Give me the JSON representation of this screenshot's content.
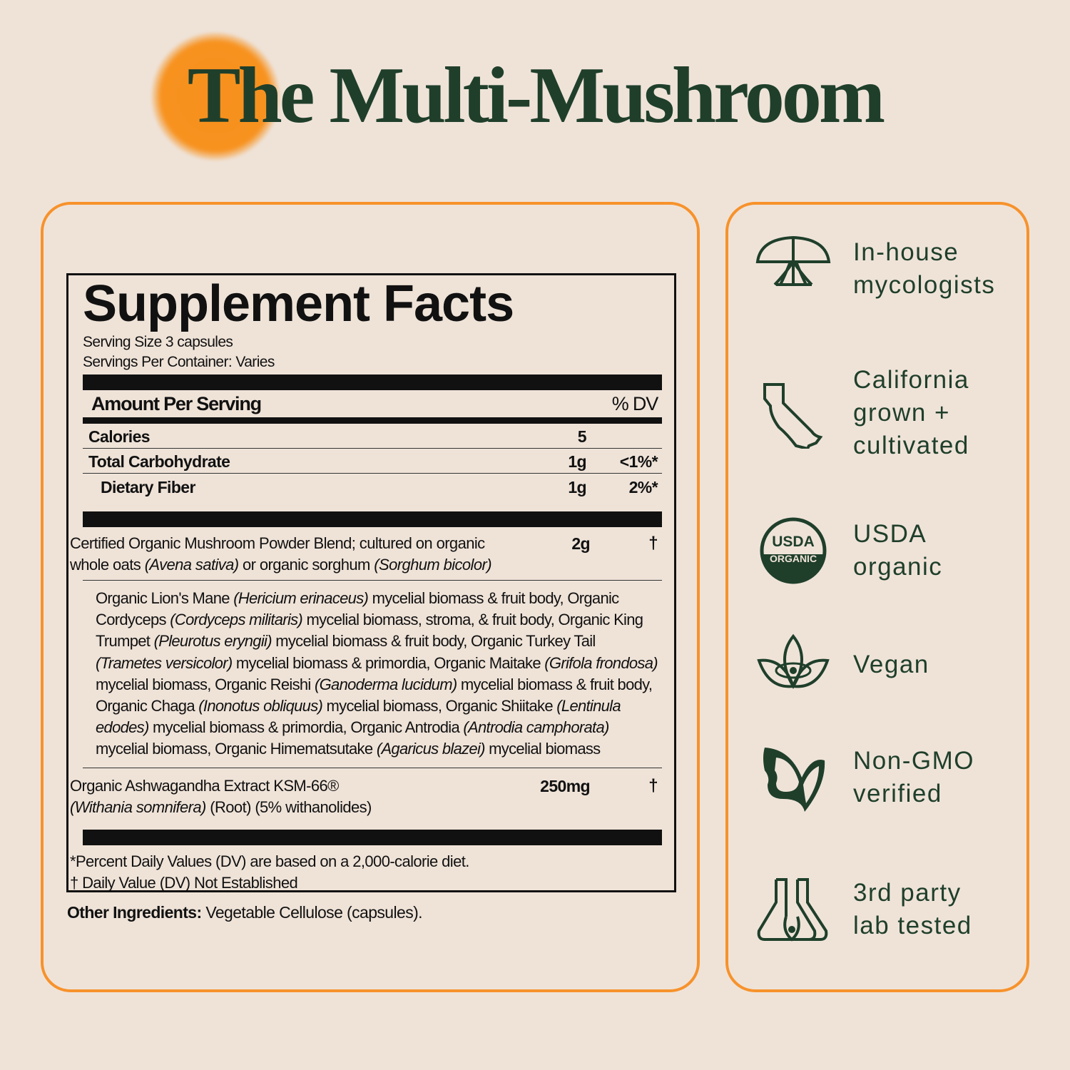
{
  "title": "The Multi-Mushroom",
  "colors": {
    "accent": "#f7922b",
    "brand_green": "#1f3f2b",
    "background": "#efe3d8"
  },
  "facts": {
    "heading": "Supplement Facts",
    "serving_size": "Serving Size 3 capsules",
    "servings_per_container": "Servings Per Container: Varies",
    "amount_header": "Amount Per Serving",
    "dv_header": "% DV",
    "rows": [
      {
        "name": "Calories",
        "amount": "5",
        "dv": ""
      },
      {
        "name": "Total Carbohydrate",
        "amount": "1g",
        "dv": "<1%*"
      },
      {
        "name": "Dietary Fiber",
        "amount": "1g",
        "dv": "2%*"
      }
    ],
    "blend": {
      "segments": [
        {
          "text": "Certified Organic Mushroom Powder Blend; cultured on organic whole oats ",
          "italic": false
        },
        {
          "text": "(Avena sativa)",
          "italic": true
        },
        {
          "text": " or organic sorghum ",
          "italic": false
        },
        {
          "text": "(Sorghum bicolor)",
          "italic": true
        }
      ],
      "amount": "2g",
      "dv": "†"
    },
    "blend_detail": [
      {
        "text": "Organic Lion's Mane ",
        "italic": false
      },
      {
        "text": "(Hericium erinaceus)",
        "italic": true
      },
      {
        "text": " mycelial biomass & fruit body, Organic Cordyceps ",
        "italic": false
      },
      {
        "text": "(Cordyceps militaris)",
        "italic": true
      },
      {
        "text": " mycelial biomass, stroma, & fruit body, Organic King Trumpet ",
        "italic": false
      },
      {
        "text": "(Pleurotus eryngii)",
        "italic": true
      },
      {
        "text": " mycelial biomass & fruit body, Organic Turkey Tail ",
        "italic": false
      },
      {
        "text": "(Trametes versicolor)",
        "italic": true
      },
      {
        "text": " mycelial biomass & primordia, Organic Maitake ",
        "italic": false
      },
      {
        "text": "(Grifola frondosa)",
        "italic": true
      },
      {
        "text": " mycelial biomass, Organic Reishi ",
        "italic": false
      },
      {
        "text": "(Ganoderma lucidum)",
        "italic": true
      },
      {
        "text": " mycelial biomass & fruit body, Organic Chaga ",
        "italic": false
      },
      {
        "text": "(Inonotus obliquus)",
        "italic": true
      },
      {
        "text": " mycelial biomass, Organic Shiitake ",
        "italic": false
      },
      {
        "text": "(Lentinula edodes)",
        "italic": true
      },
      {
        "text": " mycelial biomass & primordia, Organic Antrodia ",
        "italic": false
      },
      {
        "text": "(Antrodia camphorata)",
        "italic": true
      },
      {
        "text": " mycelial biomass, Organic Himematsutake ",
        "italic": false
      },
      {
        "text": "(Agaricus blazei)",
        "italic": true
      },
      {
        "text": " mycelial biomass",
        "italic": false
      }
    ],
    "ashwagandha": {
      "segments": [
        {
          "text": "Organic Ashwagandha Extract KSM-66®",
          "italic": false
        },
        {
          "text": "(Withania somnifera)",
          "italic": true
        },
        {
          "text": " (Root) (5% withanolides)",
          "italic": false
        }
      ],
      "amount": "250mg",
      "dv": "†"
    },
    "footnote1": "*Percent Daily Values (DV) are based on a 2,000-calorie diet.",
    "footnote2": "† Daily Value (DV) Not Established"
  },
  "other_ingredients": {
    "label": "Other Ingredients:",
    "value": " Vegetable Cellulose (capsules)."
  },
  "features": [
    {
      "icon": "mushroom-tree-icon",
      "lines": [
        "In-house",
        "mycologists"
      ]
    },
    {
      "icon": "california-icon",
      "lines": [
        "California",
        "grown +",
        "cultivated"
      ]
    },
    {
      "icon": "usda-organic-seal-icon",
      "lines": [
        "USDA",
        "organic"
      ],
      "seal_text": [
        "USDA",
        "ORGANIC"
      ]
    },
    {
      "icon": "lotus-icon",
      "lines": [
        "Vegan"
      ]
    },
    {
      "icon": "butterfly-icon",
      "lines": [
        "Non-GMO",
        "verified"
      ]
    },
    {
      "icon": "flask-icon",
      "lines": [
        "3rd party",
        "lab tested"
      ]
    }
  ]
}
